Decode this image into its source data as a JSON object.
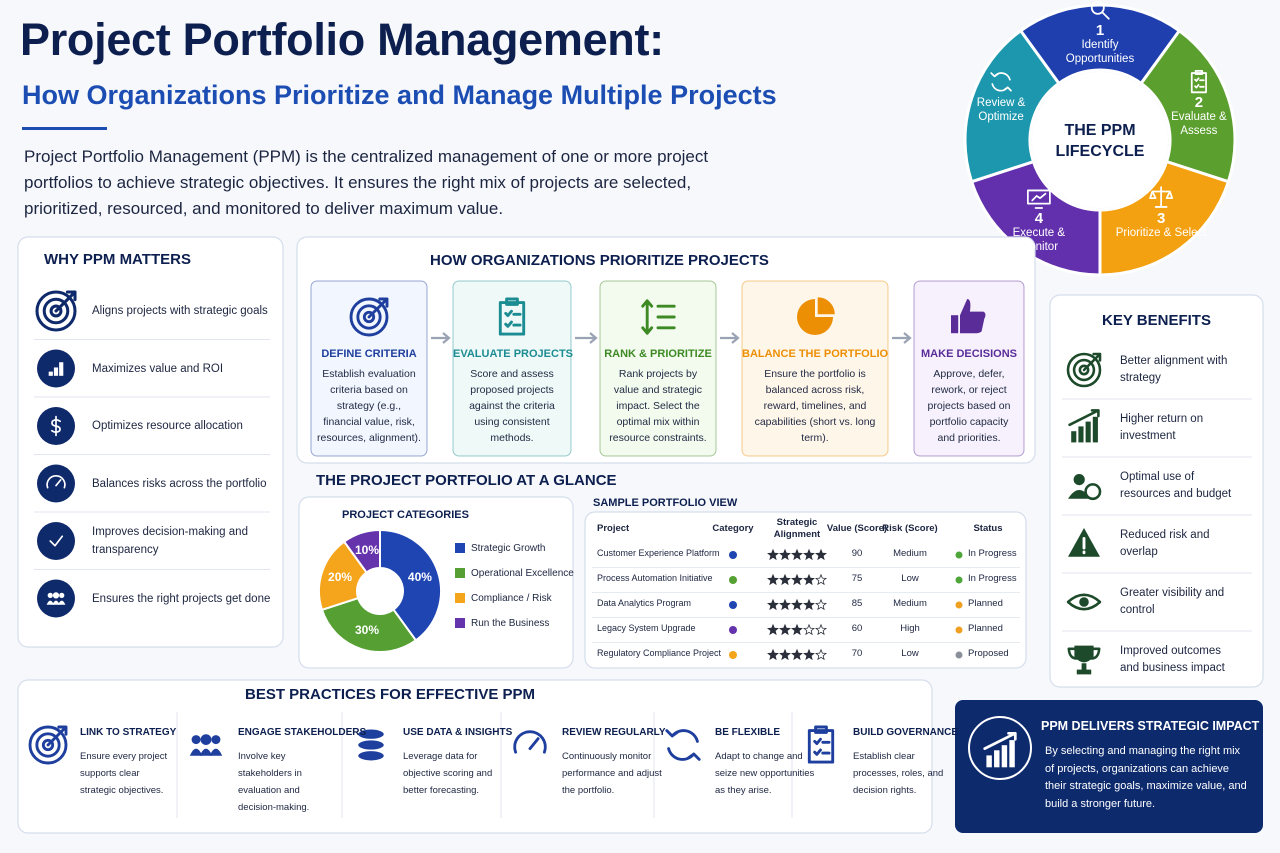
{
  "header": {
    "title": "Project Portfolio Management:",
    "subtitle": "How Organizations Prioritize and Manage Multiple Projects",
    "intro": "Project Portfolio Management (PPM) is the centralized management of one or more project portfolios to achieve strategic objectives. It ensures the right mix of projects are selected, prioritized, resourced, and monitored to deliver maximum value."
  },
  "lifecycle": {
    "center": "THE PPM LIFECYCLE",
    "stages": [
      {
        "number": "1",
        "label": "Identify Opportunities",
        "color": "#1f3fae"
      },
      {
        "number": "2",
        "label": "Evaluate & Assess",
        "color": "#5b9f2e"
      },
      {
        "number": "3",
        "label": "Prioritize & Select",
        "color": "#f3a011"
      },
      {
        "number": "4",
        "label": "Execute & Monitor",
        "color": "#6330ad"
      },
      {
        "label": "Review & Optimize",
        "color": "#1d97ad"
      }
    ]
  },
  "why": {
    "title": "WHY PPM MATTERS",
    "items": [
      "Aligns projects with strategic goals",
      "Maximizes value and ROI",
      "Optimizes resource allocation",
      "Balances risks across the portfolio",
      "Improves decision-making and transparency",
      "Ensures the right projects get done"
    ]
  },
  "prioritize": {
    "title": "HOW ORGANIZATIONS PRIORITIZE PROJECTS",
    "steps": [
      {
        "title": "DEFINE CRITERIA",
        "text": "Establish evaluation criteria based on strategy (e.g., financial value, risk, resources, alignment).",
        "color": "#1f3f9e"
      },
      {
        "title": "EVALUATE PROJECTS",
        "text": "Score and assess proposed projects against the criteria using consistent methods.",
        "color": "#1c8c93"
      },
      {
        "title": "RANK & PRIORITIZE",
        "text": "Rank projects by value and strategic impact. Select the optimal mix within resource constraints.",
        "color": "#3d8a25"
      },
      {
        "title": "BALANCE THE PORTFOLIO",
        "text": "Ensure the portfolio is balanced across risk, reward, timelines, and capabilities (short vs. long term).",
        "color": "#ec8f05"
      },
      {
        "title": "MAKE DECISIONS",
        "text": "Approve, defer, rework, or reject projects based on portfolio capacity and priorities.",
        "color": "#5a2c98"
      }
    ]
  },
  "glance": {
    "title": "THE PROJECT PORTFOLIO AT A GLANCE",
    "chart": {
      "type": "donut",
      "title": "PROJECT CATEGORIES",
      "categories": [
        "Strategic Growth",
        "Operational Excellence",
        "Compliance / Risk",
        "Run the Business"
      ],
      "values": [
        40,
        30,
        20,
        10
      ],
      "value_labels": [
        "40%",
        "30%",
        "20%",
        "10%"
      ],
      "colors": [
        "#1f45b3",
        "#56a033",
        "#f4a51c",
        "#6534ad"
      ]
    },
    "table": {
      "title": "SAMPLE PORTFOLIO VIEW",
      "columns": [
        "Project",
        "Category",
        "Strategic Alignment",
        "Value (Score)",
        "Risk (Score)",
        "Status"
      ],
      "alignment_max": 5,
      "rows": [
        {
          "project": "Customer Experience Platform",
          "category_color": "#1f45b3",
          "alignment": 5,
          "value": 90,
          "risk": "Medium",
          "status": "In Progress",
          "status_color": "#4ea53a"
        },
        {
          "project": "Process Automation Initiative",
          "category_color": "#56a033",
          "alignment": 4,
          "value": 75,
          "risk": "Low",
          "status": "In Progress",
          "status_color": "#4ea53a"
        },
        {
          "project": "Data Analytics Program",
          "category_color": "#1f45b3",
          "alignment": 4,
          "value": 85,
          "risk": "Medium",
          "status": "Planned",
          "status_color": "#f0a020"
        },
        {
          "project": "Legacy System Upgrade",
          "category_color": "#6534ad",
          "alignment": 3,
          "value": 60,
          "risk": "High",
          "status": "Planned",
          "status_color": "#f0a020"
        },
        {
          "project": "Regulatory Compliance Project",
          "category_color": "#f4a51c",
          "alignment": 4,
          "value": 70,
          "risk": "Low",
          "status": "Proposed",
          "status_color": "#8a8f99"
        }
      ]
    }
  },
  "benefits": {
    "title": "KEY BENEFITS",
    "items": [
      "Better alignment with strategy",
      "Higher return on investment",
      "Optimal use of resources and budget",
      "Reduced risk and overlap",
      "Greater visibility and control",
      "Improved outcomes and business impact"
    ]
  },
  "practices": {
    "title": "BEST PRACTICES FOR EFFECTIVE PPM",
    "items": [
      {
        "title": "LINK TO STRATEGY",
        "text": "Ensure every project supports clear strategic objectives."
      },
      {
        "title": "ENGAGE STAKEHOLDERS",
        "text": "Involve key stakeholders in evaluation and decision-making."
      },
      {
        "title": "USE DATA & INSIGHTS",
        "text": "Leverage data for objective scoring and better forecasting."
      },
      {
        "title": "REVIEW REGULARLY",
        "text": "Continuously monitor performance and adjust the portfolio."
      },
      {
        "title": "BE FLEXIBLE",
        "text": "Adapt to change and seize new opportunities as they arise."
      },
      {
        "title": "BUILD GOVERNANCE",
        "text": "Establish clear processes, roles, and decision rights."
      }
    ]
  },
  "impact": {
    "title": "PPM DELIVERS STRATEGIC IMPACT",
    "text": "By selecting and managing the right mix of projects, organizations can achieve their strategic goals, maximize value, and build a stronger future."
  }
}
